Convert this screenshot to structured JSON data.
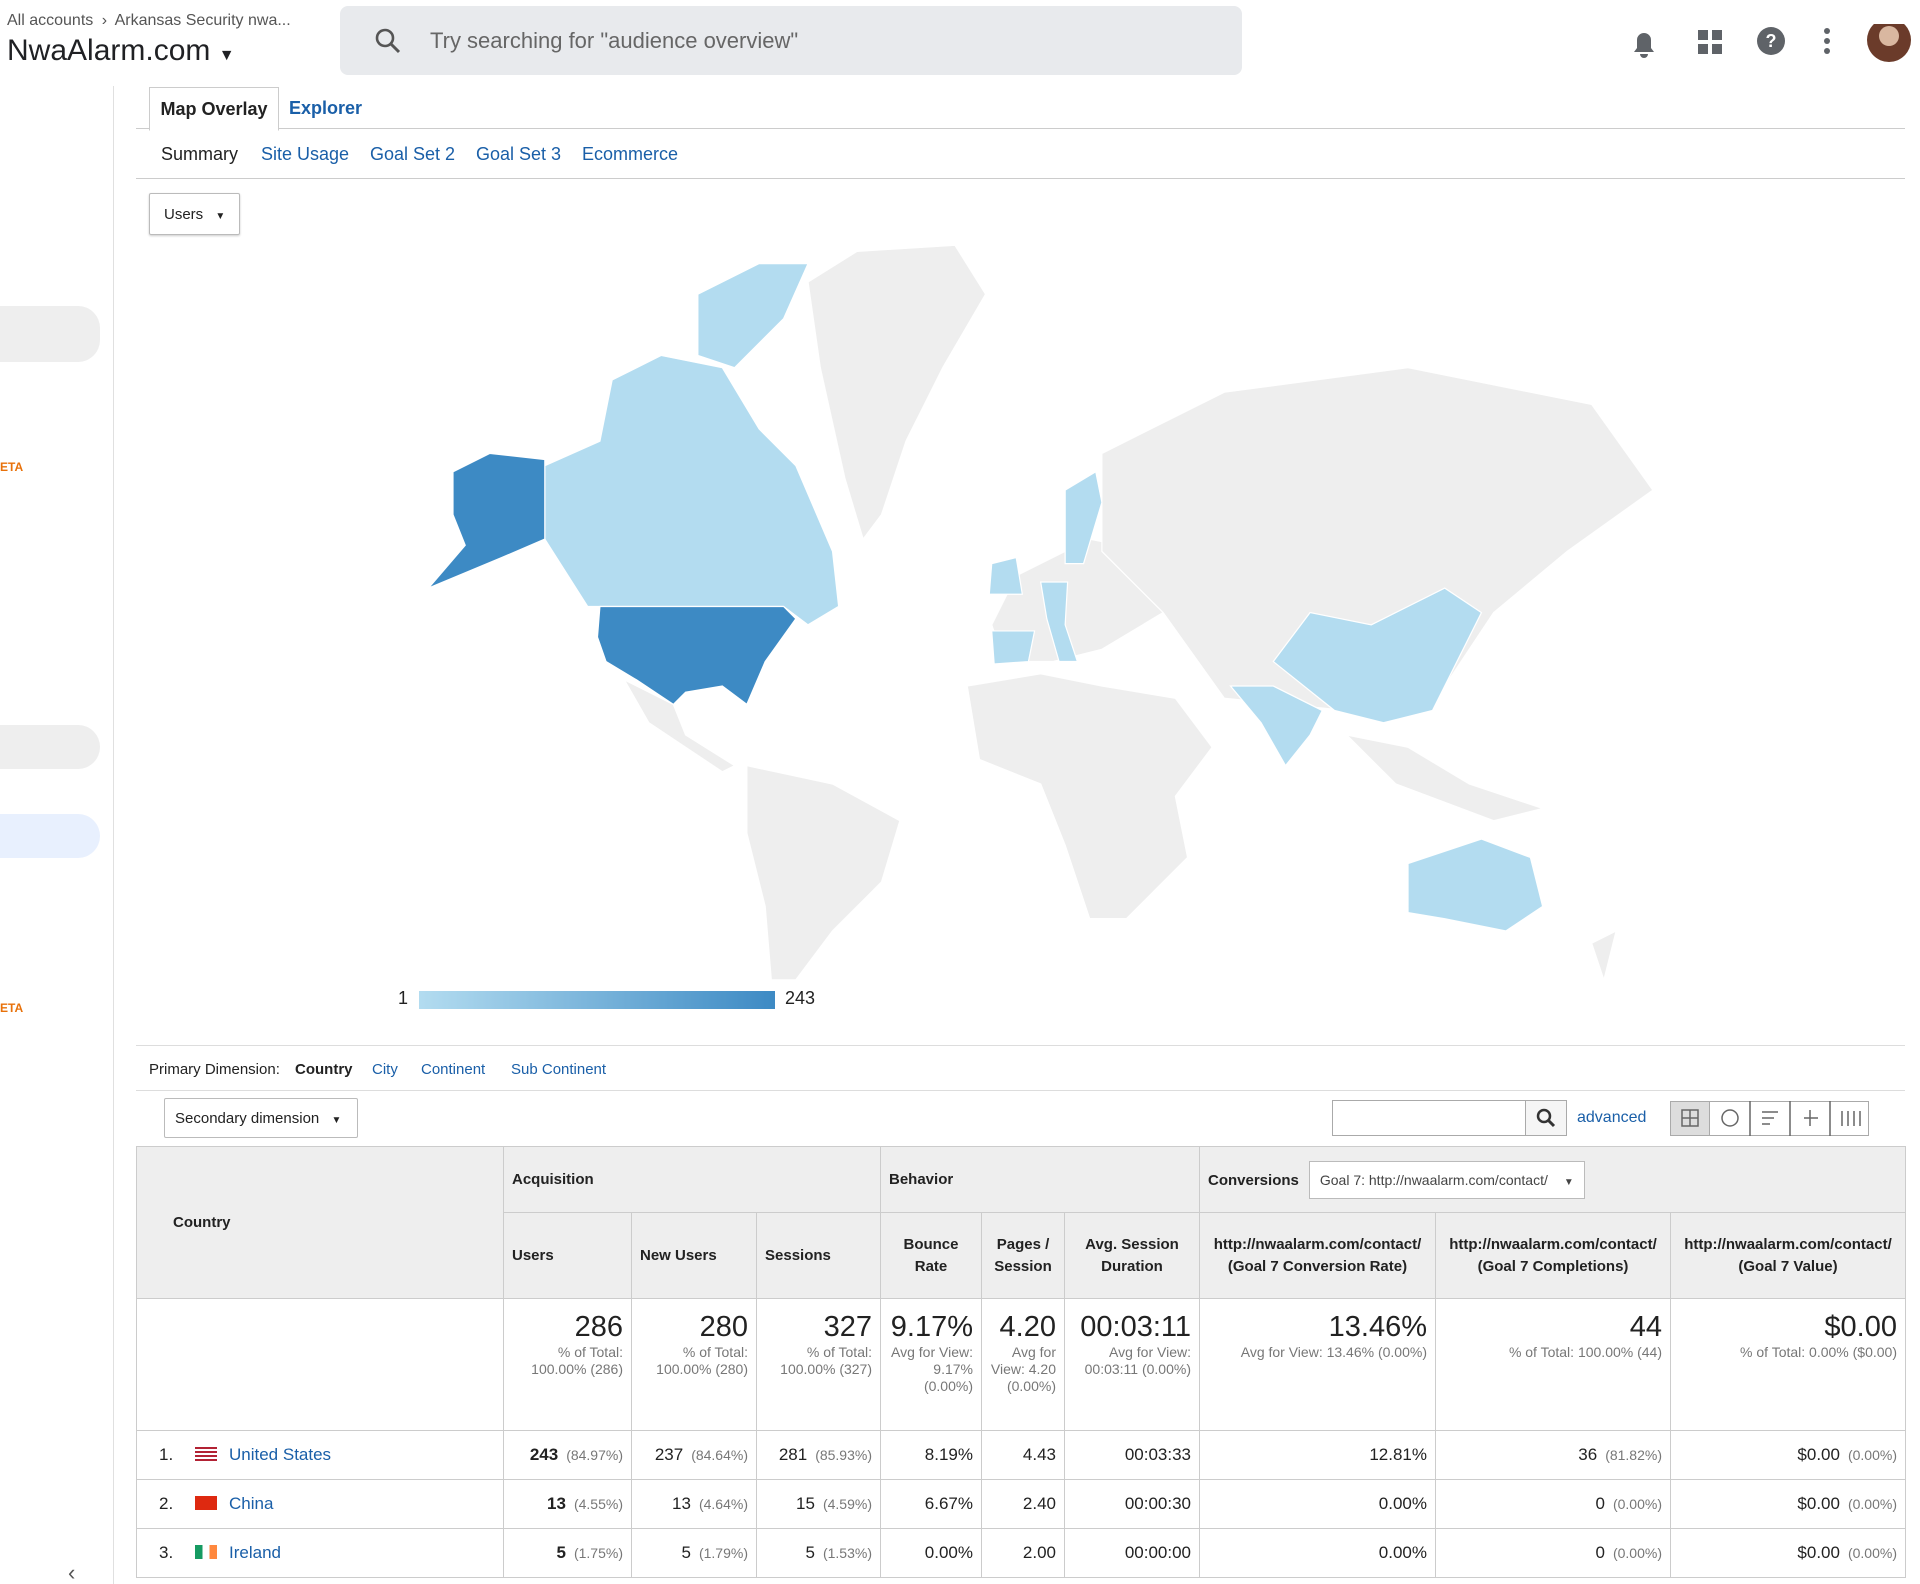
{
  "header": {
    "breadcrumb": [
      "All accounts",
      "Arkansas Security nwa..."
    ],
    "property": "NwaAlarm.com",
    "search_placeholder": "Try searching for \"audience overview\""
  },
  "sidebar": {
    "badges": [
      "ETA",
      "ETA"
    ]
  },
  "tabs": [
    "Map Overlay",
    "Explorer"
  ],
  "subtabs": [
    "Summary",
    "Site Usage",
    "Goal Set 2",
    "Goal Set 3",
    "Ecommerce"
  ],
  "metric_select": "Users",
  "map_legend": {
    "min": "1",
    "max": "243"
  },
  "dimensions": {
    "label": "Primary Dimension:",
    "options": [
      "Country",
      "City",
      "Continent",
      "Sub Continent"
    ]
  },
  "secondary_dimension": "Secondary dimension",
  "advanced": "advanced",
  "table": {
    "groups": [
      "Acquisition",
      "Behavior",
      "Conversions"
    ],
    "goal_select": "Goal 7: http://nwaalarm.com/contact/",
    "columns": [
      "Country",
      "Users",
      "New Users",
      "Sessions",
      "Bounce Rate",
      "Pages / Session",
      "Avg. Session Duration",
      "http://nwaalarm.com/contact/ (Goal 7 Conversion Rate)",
      "http://nwaalarm.com/contact/ (Goal 7 Completions)",
      "http://nwaalarm.com/contact/ (Goal 7 Value)"
    ],
    "totals": [
      {
        "value": "286",
        "sub": "% of Total: 100.00% (286)"
      },
      {
        "value": "280",
        "sub": "% of Total: 100.00% (280)"
      },
      {
        "value": "327",
        "sub": "% of Total: 100.00% (327)"
      },
      {
        "value": "9.17%",
        "sub": "Avg for View: 9.17% (0.00%)"
      },
      {
        "value": "4.20",
        "sub": "Avg for View: 4.20 (0.00%)"
      },
      {
        "value": "00:03:11",
        "sub": "Avg for View: 00:03:11 (0.00%)"
      },
      {
        "value": "13.46%",
        "sub": "Avg for View: 13.46% (0.00%)"
      },
      {
        "value": "44",
        "sub": "% of Total: 100.00% (44)"
      },
      {
        "value": "$0.00",
        "sub": "% of Total: 0.00% ($0.00)"
      }
    ],
    "rows": [
      {
        "rank": "1.",
        "country": "United States",
        "cells": [
          [
            "243",
            "(84.97%)"
          ],
          [
            "237",
            "(84.64%)"
          ],
          [
            "281",
            "(85.93%)"
          ],
          [
            "8.19%"
          ],
          [
            "4.43"
          ],
          [
            "00:03:33"
          ],
          [
            "12.81%"
          ],
          [
            "36",
            "(81.82%)"
          ],
          [
            "$0.00",
            "(0.00%)"
          ]
        ]
      },
      {
        "rank": "2.",
        "country": "China",
        "cells": [
          [
            "13",
            "(4.55%)"
          ],
          [
            "13",
            "(4.64%)"
          ],
          [
            "15",
            "(4.59%)"
          ],
          [
            "6.67%"
          ],
          [
            "2.40"
          ],
          [
            "00:00:30"
          ],
          [
            "0.00%"
          ],
          [
            "0",
            "(0.00%)"
          ],
          [
            "$0.00",
            "(0.00%)"
          ]
        ]
      },
      {
        "rank": "3.",
        "country": "Ireland",
        "cells": [
          [
            "5",
            "(1.75%)"
          ],
          [
            "5",
            "(1.79%)"
          ],
          [
            "5",
            "(1.53%)"
          ],
          [
            "0.00%"
          ],
          [
            "2.00"
          ],
          [
            "00:00:00"
          ],
          [
            "0.00%"
          ],
          [
            "0",
            "(0.00%)"
          ],
          [
            "$0.00",
            "(0.00%)"
          ]
        ]
      }
    ]
  }
}
